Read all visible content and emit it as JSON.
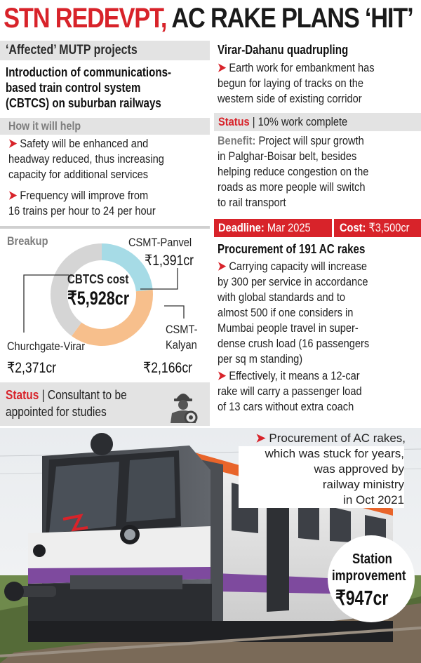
{
  "headline": {
    "part1": "STN REDEVPT,",
    "part2": " AC RAKE PLANS ‘HIT’"
  },
  "left": {
    "section_tag": "‘Affected’ MUTP projects",
    "cbtcs_title": [
      "Introduction of communications-",
      "based train control system",
      "(CBTCS) on suburban railways"
    ],
    "how_help": "How it will help",
    "bullet1": [
      "Safety will be enhanced and",
      "headway reduced, thus increasing",
      "capacity for additional services"
    ],
    "bullet2": [
      "Frequency will improve from",
      "16 trains per hour to 24 per hour"
    ],
    "breakup_label": "Breakup",
    "donut_center_label": "CBTCS cost",
    "donut_center_value": "₹5,928cr",
    "csmt_panvel_label": "CSMT-Panvel",
    "csmt_panvel_value": "₹1,391cr",
    "churchgate_label": "Churchgate-Virar",
    "churchgate_value": "₹2,371cr",
    "csmt_kalyan_label1": "CSMT-",
    "csmt_kalyan_label2": "Kalyan",
    "csmt_kalyan_value": "₹2,166cr",
    "status_label": "Status",
    "status_text1": " | Consultant to be",
    "status_text2": "appointed for studies"
  },
  "right": {
    "virar_title": "Virar-Dahanu quadrupling",
    "virar_bullet": [
      "Earth work for embankment has",
      "begun for laying of tracks on the",
      "western side of existing corridor"
    ],
    "status_label": "Status",
    "status_text": " | 10% work complete",
    "benefit_label": "Benefit:",
    "benefit_lines": [
      " Project will spur growth",
      "in Palghar-Boisar belt, besides",
      "helping reduce congestion on the",
      "roads as more people will switch",
      "to rail transport"
    ],
    "deadline_label": "Deadline:",
    "deadline_value": " Mar 2025",
    "cost_label": "Cost:",
    "cost_value": "₹3,500cr",
    "ac_title": "Procurement of 191 AC rakes",
    "ac_bullet1": [
      "Carrying capacity will increase",
      "by 300 per service in accordance",
      "with global standards and to",
      "almost 500 if one considers in",
      "Mumbai people travel in super-",
      "dense crush load (16 passengers",
      "per sq m standing)"
    ],
    "ac_bullet2": [
      "Effectively, it means a 12-car",
      "rake will carry a passenger load",
      "of 13 cars without extra coach"
    ],
    "ac_bullet3": [
      "Procurement of AC rakes,",
      "which was stuck for years,",
      "was approved by",
      "railway ministry",
      "in Oct 2021"
    ]
  },
  "station": {
    "label1": "Station",
    "label2": "improvement",
    "value": "₹947cr"
  },
  "icons": {
    "arrow": "➤",
    "worker": "worker-icon",
    "train": "train-photo"
  },
  "donut": {
    "values": [
      1391,
      2166,
      2371
    ],
    "colors": [
      "#a6dbe6",
      "#f7bf8c",
      "#d5d5d5"
    ]
  },
  "colors": {
    "accent": "#d8232a",
    "grey_band": "#e3e3e3",
    "text": "#1a1a1a"
  }
}
